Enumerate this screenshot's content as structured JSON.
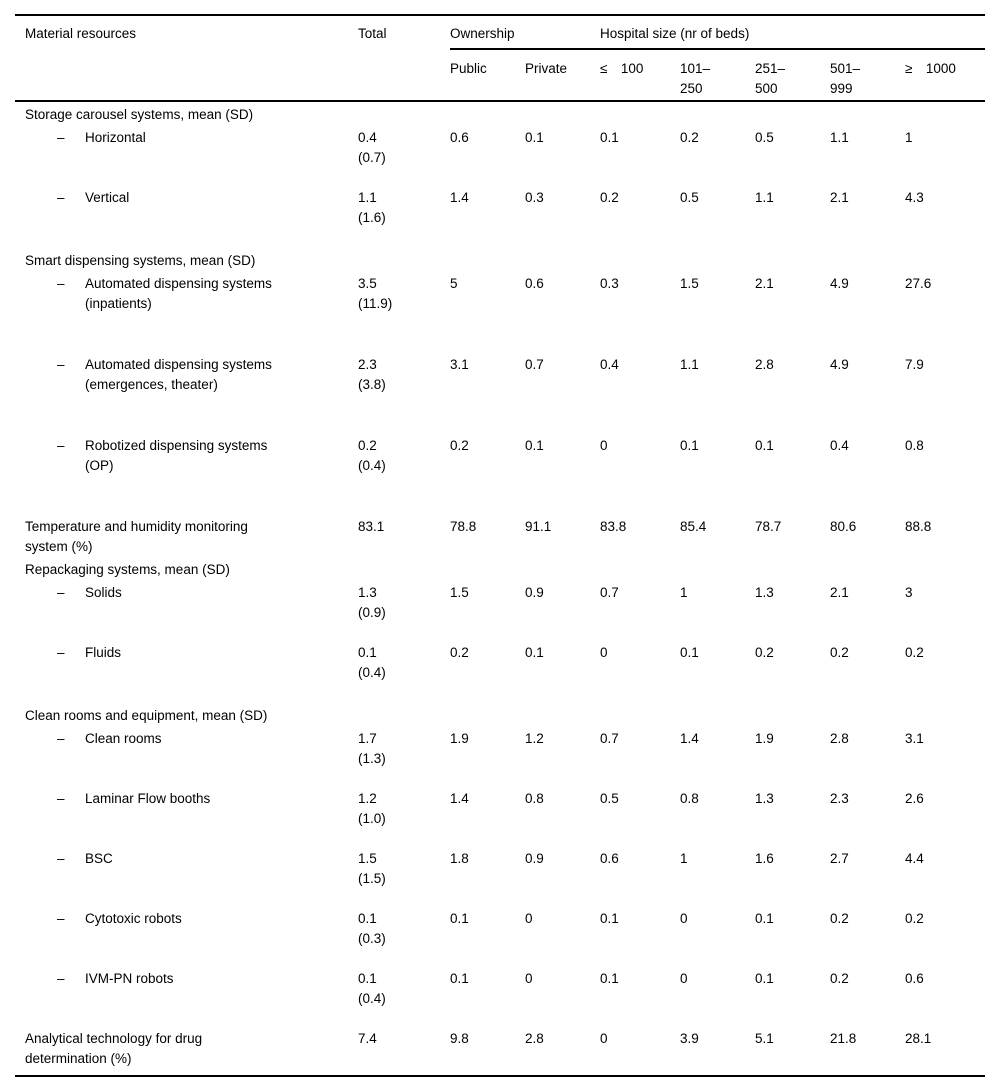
{
  "table": {
    "col1_header": "Material resources",
    "total_header": "Total",
    "group_headers": [
      {
        "label": "Ownership",
        "span": 2
      },
      {
        "label": "Hospital size (nr of beds)",
        "span": 5
      }
    ],
    "sub_headers": [
      "Public",
      "Private",
      "≤ 100",
      "101–\n250",
      "251–\n500",
      "501–\n999",
      "≥ 1000"
    ],
    "dash": "–",
    "rows": [
      {
        "type": "section",
        "label": "Storage carousel systems, mean (SD)"
      },
      {
        "type": "item",
        "label": "Horizontal",
        "total": "0.4",
        "sd": "(0.7)",
        "values": [
          "0.6",
          "0.1",
          "0.1",
          "0.2",
          "0.5",
          "1.1",
          "1"
        ]
      },
      {
        "type": "item",
        "label": "Vertical",
        "total": "1.1",
        "sd": "(1.6)",
        "values": [
          "1.4",
          "0.3",
          "0.2",
          "0.5",
          "1.1",
          "2.1",
          "4.3"
        ]
      },
      {
        "type": "section",
        "label": "Smart dispensing systems, mean (SD)"
      },
      {
        "type": "item",
        "label": "Automated dispensing systems\n(inpatients)",
        "total": "3.5",
        "sd": "(11.9)",
        "values": [
          "5",
          "0.6",
          "0.3",
          "1.5",
          "2.1",
          "4.9",
          "27.6"
        ]
      },
      {
        "type": "item",
        "label": "Automated dispensing systems\n(emergences, theater)",
        "total": "2.3",
        "sd": "(3.8)",
        "values": [
          "3.1",
          "0.7",
          "0.4",
          "1.1",
          "2.8",
          "4.9",
          "7.9"
        ]
      },
      {
        "type": "item",
        "label": "Robotized dispensing systems\n(OP)",
        "total": "0.2",
        "sd": "(0.4)",
        "values": [
          "0.2",
          "0.1",
          "0",
          "0.1",
          "0.1",
          "0.4",
          "0.8"
        ]
      },
      {
        "type": "flat",
        "label": "Temperature and humidity monitoring\nsystem (%)",
        "total": "83.1",
        "values": [
          "78.8",
          "91.1",
          "83.8",
          "85.4",
          "78.7",
          "80.6",
          "88.8"
        ]
      },
      {
        "type": "section",
        "label": "Repackaging systems, mean (SD)"
      },
      {
        "type": "item",
        "label": "Solids",
        "total": "1.3",
        "sd": "(0.9)",
        "values": [
          "1.5",
          "0.9",
          "0.7",
          "1",
          "1.3",
          "2.1",
          "3"
        ]
      },
      {
        "type": "item",
        "label": "Fluids",
        "total": "0.1",
        "sd": "(0.4)",
        "values": [
          "0.2",
          "0.1",
          "0",
          "0.1",
          "0.2",
          "0.2",
          "0.2"
        ]
      },
      {
        "type": "section",
        "label": "Clean rooms and equipment, mean (SD)"
      },
      {
        "type": "item",
        "label": "Clean rooms",
        "total": "1.7",
        "sd": "(1.3)",
        "values": [
          "1.9",
          "1.2",
          "0.7",
          "1.4",
          "1.9",
          "2.8",
          "3.1"
        ]
      },
      {
        "type": "item",
        "label": "Laminar Flow booths",
        "total": "1.2",
        "sd": "(1.0)",
        "values": [
          "1.4",
          "0.8",
          "0.5",
          "0.8",
          "1.3",
          "2.3",
          "2.6"
        ]
      },
      {
        "type": "item",
        "label": "BSC",
        "total": "1.5",
        "sd": "(1.5)",
        "values": [
          "1.8",
          "0.9",
          "0.6",
          "1",
          "1.6",
          "2.7",
          "4.4"
        ]
      },
      {
        "type": "item",
        "label": "Cytotoxic robots",
        "total": "0.1",
        "sd": "(0.3)",
        "values": [
          "0.1",
          "0",
          "0.1",
          "0",
          "0.1",
          "0.2",
          "0.2"
        ]
      },
      {
        "type": "item",
        "label": "IVM-PN robots",
        "total": "0.1",
        "sd": "(0.4)",
        "values": [
          "0.1",
          "0",
          "0.1",
          "0",
          "0.1",
          "0.2",
          "0.6"
        ]
      },
      {
        "type": "flat",
        "label": "Analytical technology for drug\ndetermination (%)",
        "total": "7.4",
        "values": [
          "9.8",
          "2.8",
          "0",
          "3.9",
          "5.1",
          "21.8",
          "28.1"
        ]
      }
    ]
  }
}
